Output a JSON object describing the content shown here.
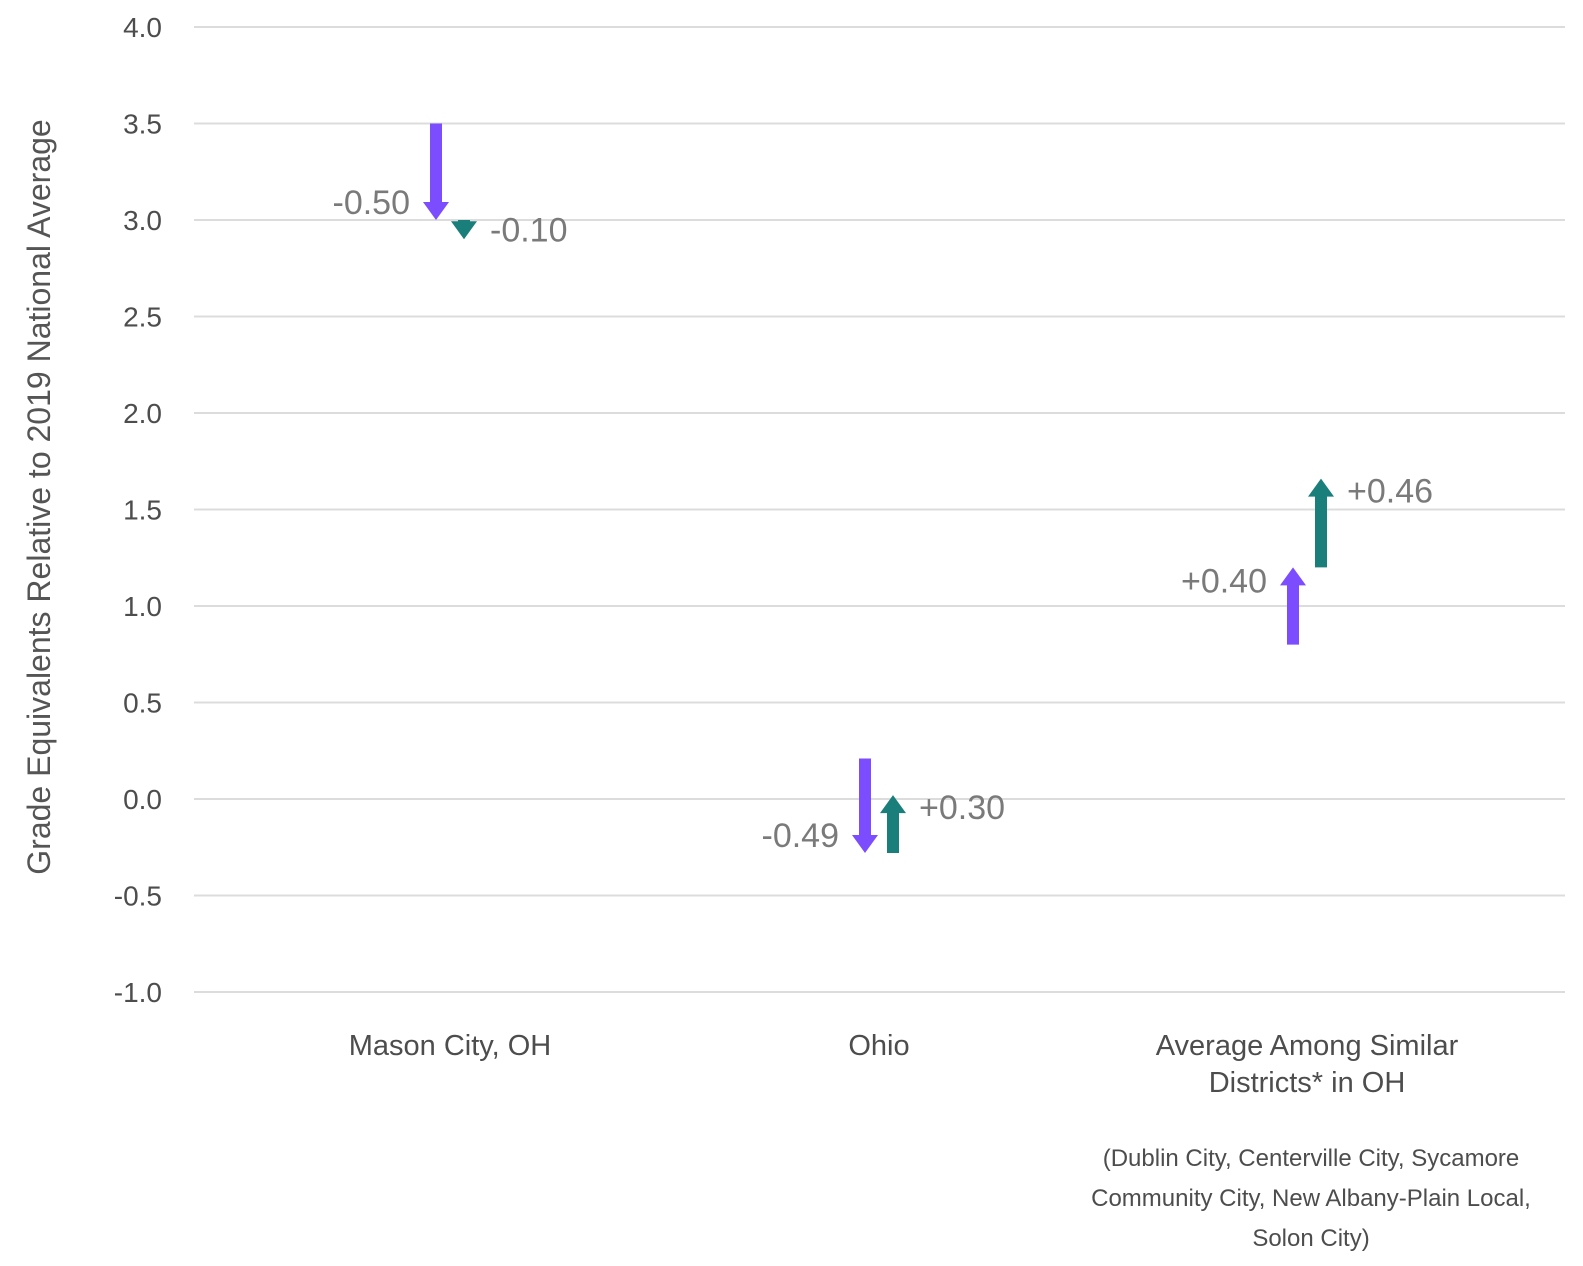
{
  "chart_data": {
    "type": "arrow",
    "ylabel": "Grade Equivalents Relative to 2019 National Average",
    "ylim": [
      -1.0,
      4.0
    ],
    "yticks": [
      "4.0",
      "3.5",
      "3.0",
      "2.5",
      "2.0",
      "1.5",
      "1.0",
      "0.5",
      "0.0",
      "-0.5",
      "-1.0"
    ],
    "grid": true,
    "categories": [
      {
        "label_lines": [
          "Mason City, OH"
        ]
      },
      {
        "label_lines": [
          "Ohio"
        ]
      },
      {
        "label_lines": [
          "Average Among Similar",
          "Districts* in OH"
        ]
      }
    ],
    "series": [
      {
        "color": "#7c4dff",
        "arrows": [
          {
            "category": 0,
            "from": 3.5,
            "to": 3.0,
            "label": "-0.50"
          },
          {
            "category": 1,
            "from": 0.21,
            "to": -0.28,
            "label": "-0.49"
          },
          {
            "category": 2,
            "from": 0.8,
            "to": 1.2,
            "label": "+0.40"
          }
        ]
      },
      {
        "color": "#1a7f7a",
        "arrows": [
          {
            "category": 0,
            "from": 3.0,
            "to": 2.9,
            "label": "-0.10"
          },
          {
            "category": 1,
            "from": -0.28,
            "to": 0.02,
            "label": "+0.30"
          },
          {
            "category": 2,
            "from": 1.2,
            "to": 1.66,
            "label": "+0.46"
          }
        ]
      }
    ],
    "footnote_lines": [
      "(Dublin City, Centerville City, Sycamore",
      "Community City, New Albany-Plain Local,",
      "Solon City)"
    ]
  }
}
